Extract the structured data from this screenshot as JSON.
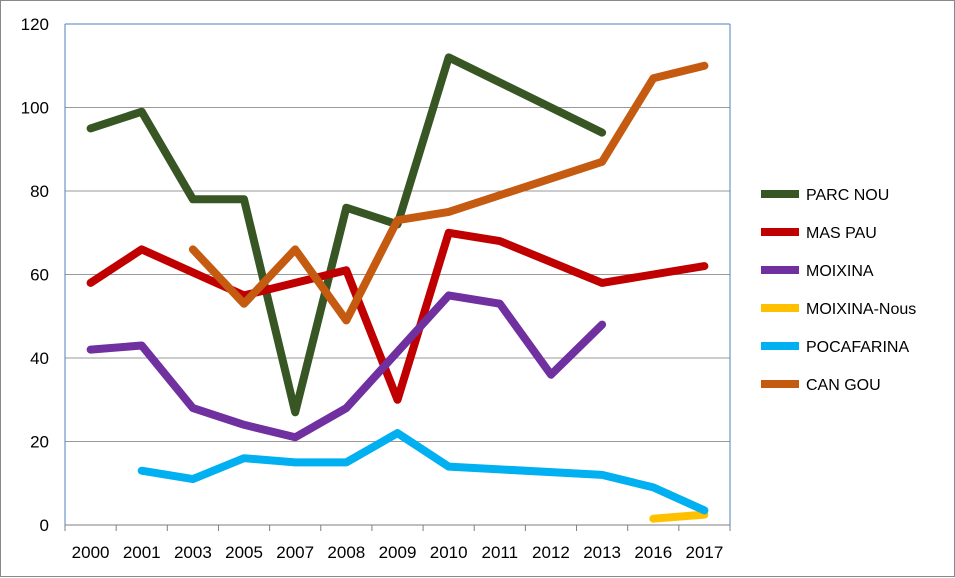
{
  "chart_data": {
    "type": "line",
    "title": "",
    "xlabel": "",
    "ylabel": "",
    "categories": [
      "2000",
      "2001",
      "2003",
      "2005",
      "2007",
      "2008",
      "2009",
      "2010",
      "2011",
      "2012",
      "2013",
      "2016",
      "2017"
    ],
    "ylim": [
      0,
      120
    ],
    "yticks": [
      0,
      20,
      40,
      60,
      80,
      100,
      120
    ],
    "grid": true,
    "legend_position": "right",
    "series": [
      {
        "name": "PARC NOU",
        "color": "#375623",
        "values": [
          95,
          99,
          78,
          78,
          27,
          76,
          72,
          112,
          null,
          null,
          94,
          null,
          null
        ]
      },
      {
        "name": "MAS PAU",
        "color": "#C00000",
        "values": [
          58,
          66,
          null,
          55,
          null,
          61,
          30,
          70,
          68,
          null,
          58,
          null,
          62
        ]
      },
      {
        "name": "MOIXINA",
        "color": "#7030A0",
        "values": [
          42,
          43,
          28,
          24,
          21,
          28,
          null,
          55,
          53,
          36,
          48,
          null,
          null
        ]
      },
      {
        "name": "MOIXINA-Nous",
        "color": "#FFC000",
        "values": [
          null,
          null,
          null,
          null,
          null,
          null,
          null,
          null,
          null,
          null,
          null,
          1.5,
          2.5
        ]
      },
      {
        "name": "POCAFARINA",
        "color": "#00B0F0",
        "values": [
          null,
          13,
          11,
          16,
          15,
          15,
          22,
          14,
          null,
          null,
          12,
          9,
          3.5
        ]
      },
      {
        "name": "CAN GOU",
        "color": "#C55A11",
        "values": [
          null,
          null,
          66,
          53,
          66,
          49,
          73,
          75,
          null,
          null,
          87,
          107,
          110
        ]
      }
    ]
  }
}
